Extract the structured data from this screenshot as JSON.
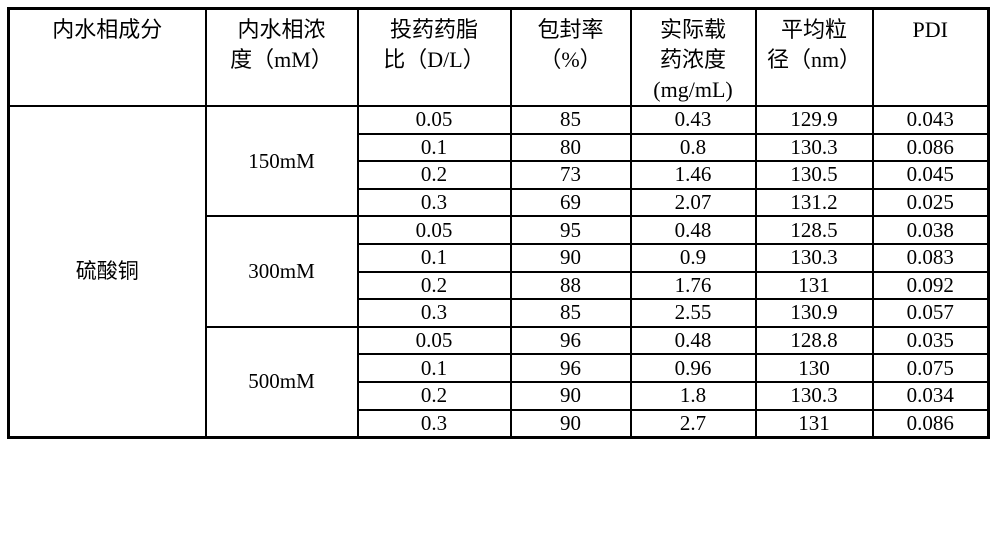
{
  "table": {
    "headers": [
      {
        "id": "composition",
        "label": "内水相成分"
      },
      {
        "id": "concentration",
        "label": "内水相浓\n度（mM）"
      },
      {
        "id": "dl_ratio",
        "label": "投药药脂\n比（D/L）"
      },
      {
        "id": "encapsulation",
        "label": "包封率\n（%）"
      },
      {
        "id": "drug_conc",
        "label": "实际载\n药浓度\n(mg/mL)"
      },
      {
        "id": "particle_size",
        "label": "平均粒\n径（nm）"
      },
      {
        "id": "pdi",
        "label": "PDI"
      }
    ],
    "composition": "硫酸铜",
    "groups": [
      {
        "concentration": "150mM",
        "rows": [
          [
            "0.05",
            "85",
            "0.43",
            "129.9",
            "0.043"
          ],
          [
            "0.1",
            "80",
            "0.8",
            "130.3",
            "0.086"
          ],
          [
            "0.2",
            "73",
            "1.46",
            "130.5",
            "0.045"
          ],
          [
            "0.3",
            "69",
            "2.07",
            "131.2",
            "0.025"
          ]
        ]
      },
      {
        "concentration": "300mM",
        "rows": [
          [
            "0.05",
            "95",
            "0.48",
            "128.5",
            "0.038"
          ],
          [
            "0.1",
            "90",
            "0.9",
            "130.3",
            "0.083"
          ],
          [
            "0.2",
            "88",
            "1.76",
            "131",
            "0.092"
          ],
          [
            "0.3",
            "85",
            "2.55",
            "130.9",
            "0.057"
          ]
        ]
      },
      {
        "concentration": "500mM",
        "rows": [
          [
            "0.05",
            "96",
            "0.48",
            "128.8",
            "0.035"
          ],
          [
            "0.1",
            "96",
            "0.96",
            "130",
            "0.075"
          ],
          [
            "0.2",
            "90",
            "1.8",
            "130.3",
            "0.034"
          ],
          [
            "0.3",
            "90",
            "2.7",
            "131",
            "0.086"
          ]
        ]
      }
    ],
    "colors": {
      "border": "#000000",
      "text": "#000000",
      "background": "#ffffff"
    }
  }
}
